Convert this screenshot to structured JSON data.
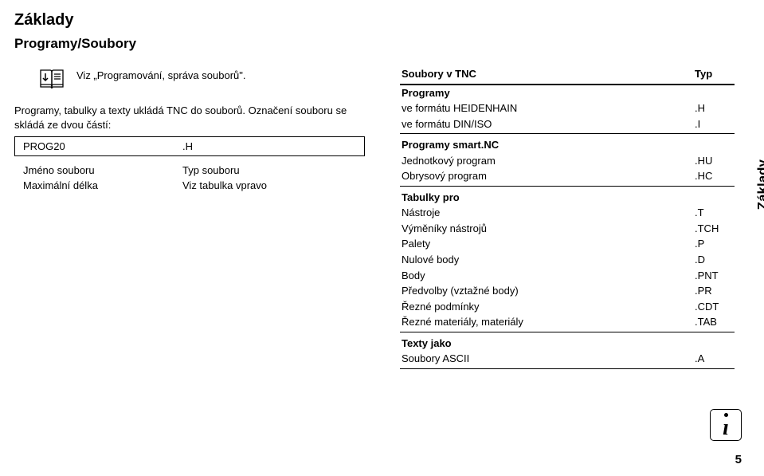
{
  "headings": {
    "h1": "Základy",
    "h2": "Programy/Soubory"
  },
  "left": {
    "note": "Viz „Programování, správa souborů\".",
    "para1": "Programy, tabulky a texty ukládá TNC do souborů. Označení souboru se skládá ze dvou částí:",
    "progbox": {
      "name": "PROG20",
      "ext": ".H"
    },
    "rows": [
      {
        "k": "Jméno souboru",
        "v": "Typ souboru"
      },
      {
        "k": "Maximální délka",
        "v": "Viz tabulka vpravo"
      }
    ]
  },
  "right": {
    "header": {
      "c1": "Soubory v TNC",
      "c2": "Typ"
    },
    "sections": [
      {
        "title": "Programy",
        "rows": [
          {
            "l": "ve formátu HEIDENHAIN",
            "r": ".H"
          },
          {
            "l": "ve formátu DIN/ISO",
            "r": ".I"
          }
        ]
      },
      {
        "title": "Programy smart.NC",
        "rows": [
          {
            "l": "Jednotkový program",
            "r": ".HU"
          },
          {
            "l": "Obrysový program",
            "r": ".HC"
          }
        ]
      },
      {
        "title": "Tabulky pro",
        "rows": [
          {
            "l": "Nástroje",
            "r": ".T"
          },
          {
            "l": "Výměníky nástrojů",
            "r": ".TCH"
          },
          {
            "l": "Palety",
            "r": ".P"
          },
          {
            "l": "Nulové body",
            "r": ".D"
          },
          {
            "l": "Body",
            "r": ".PNT"
          },
          {
            "l": "Předvolby (vztažné body)",
            "r": ".PR"
          },
          {
            "l": "Řezné podmínky",
            "r": ".CDT"
          },
          {
            "l": "Řezné materiály, materiály",
            "r": ".TAB"
          }
        ]
      },
      {
        "title": "Texty jako",
        "rows": [
          {
            "l": "Soubory ASCII",
            "r": ".A"
          }
        ]
      }
    ]
  },
  "sideLabel": "Základy",
  "infoGlyph": "ı",
  "pageNum": "5"
}
